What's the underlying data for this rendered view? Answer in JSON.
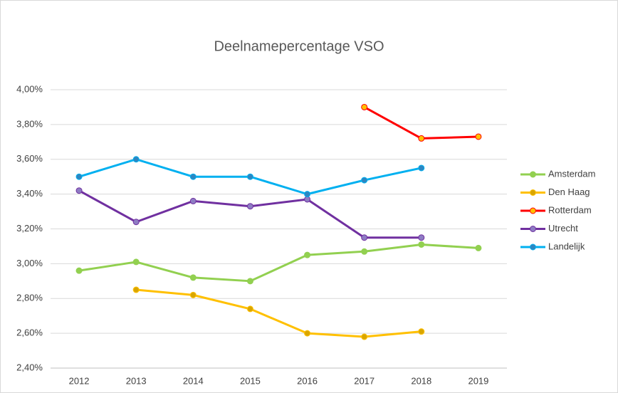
{
  "chart_data": {
    "type": "line",
    "title": "Deelnamepercentage VSO",
    "categories": [
      "2012",
      "2013",
      "2014",
      "2015",
      "2016",
      "2017",
      "2018",
      "2019"
    ],
    "series": [
      {
        "name": "Amsterdam",
        "color": "#92d050",
        "marker_color": "#92d050",
        "values": [
          2.96,
          3.01,
          2.92,
          2.9,
          3.05,
          3.07,
          3.11,
          3.09
        ]
      },
      {
        "name": "Den Haag",
        "color": "#ffc000",
        "marker_color": "#d9a600",
        "values": [
          null,
          2.85,
          2.82,
          2.74,
          2.6,
          2.58,
          2.61,
          null
        ]
      },
      {
        "name": "Rotterdam",
        "color": "#ff0000",
        "marker_color": "#ffc000",
        "values": [
          null,
          null,
          null,
          null,
          null,
          3.9,
          3.72,
          3.73
        ]
      },
      {
        "name": "Utrecht",
        "color": "#7030a0",
        "marker_color": "#8e7cc3",
        "values": [
          3.42,
          3.24,
          3.36,
          3.33,
          3.37,
          3.15,
          3.15,
          null
        ]
      },
      {
        "name": "Landelijk",
        "color": "#00b0f0",
        "marker_color": "#2e86c1",
        "values": [
          3.5,
          3.6,
          3.5,
          3.5,
          3.4,
          3.48,
          3.55,
          null
        ]
      }
    ],
    "ylim": [
      2.4,
      4.0
    ],
    "yticks": [
      {
        "value": 2.4,
        "label": "2,40%"
      },
      {
        "value": 2.6,
        "label": "2,60%"
      },
      {
        "value": 2.8,
        "label": "2,80%"
      },
      {
        "value": 3.0,
        "label": "3,00%"
      },
      {
        "value": 3.2,
        "label": "3,20%"
      },
      {
        "value": 3.4,
        "label": "3,40%"
      },
      {
        "value": 3.6,
        "label": "3,60%"
      },
      {
        "value": 3.8,
        "label": "3,80%"
      },
      {
        "value": 4.0,
        "label": "4,00%"
      }
    ],
    "grid": true,
    "legend": "right"
  }
}
